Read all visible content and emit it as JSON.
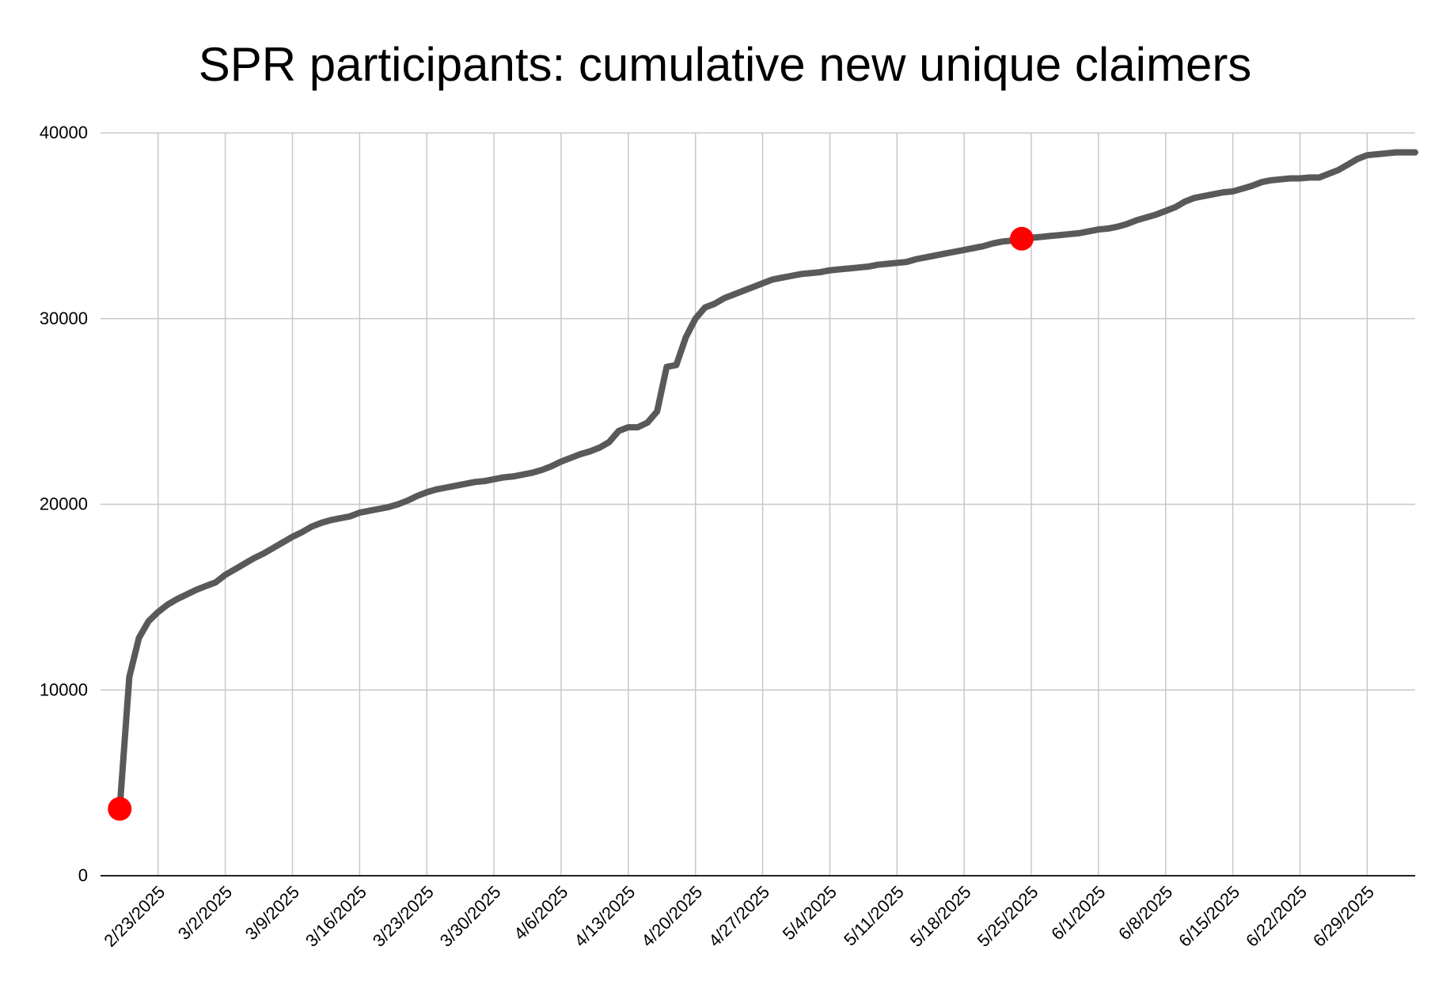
{
  "chart_data": {
    "type": "line",
    "title": "SPR participants: cumulative new unique claimers",
    "xlabel": "",
    "ylabel": "",
    "ylim": [
      0,
      40000
    ],
    "y_ticks": [
      0,
      10000,
      20000,
      30000,
      40000
    ],
    "y_tick_labels": [
      "0",
      "10000",
      "20000",
      "30000",
      "40000"
    ],
    "x_range": [
      "2025-02-17",
      "2025-07-04"
    ],
    "x_tick_labels": [
      "2/23/2025",
      "3/2/2025",
      "3/9/2025",
      "3/16/2025",
      "3/23/2025",
      "3/30/2025",
      "4/6/2025",
      "4/13/2025",
      "4/20/2025",
      "4/27/2025",
      "5/4/2025",
      "5/11/2025",
      "5/18/2025",
      "5/25/2025",
      "6/1/2025",
      "6/8/2025",
      "6/15/2025",
      "6/22/2025",
      "6/29/2025"
    ],
    "x_tick_dates": [
      "2025-02-23",
      "2025-03-02",
      "2025-03-09",
      "2025-03-16",
      "2025-03-23",
      "2025-03-30",
      "2025-04-06",
      "2025-04-13",
      "2025-04-20",
      "2025-04-27",
      "2025-05-04",
      "2025-05-11",
      "2025-05-18",
      "2025-05-25",
      "2025-06-01",
      "2025-06-08",
      "2025-06-15",
      "2025-06-22",
      "2025-06-29"
    ],
    "grid": true,
    "line_color": "#595959",
    "marker_color": "#ff0000",
    "series": [
      {
        "x": [
          "2025-02-19",
          "2025-02-20",
          "2025-02-21",
          "2025-02-22",
          "2025-02-23",
          "2025-02-24",
          "2025-02-25",
          "2025-02-26",
          "2025-02-27",
          "2025-02-28",
          "2025-03-01",
          "2025-03-02",
          "2025-03-03",
          "2025-03-04",
          "2025-03-05",
          "2025-03-06",
          "2025-03-07",
          "2025-03-08",
          "2025-03-09",
          "2025-03-10",
          "2025-03-11",
          "2025-03-12",
          "2025-03-13",
          "2025-03-14",
          "2025-03-15",
          "2025-03-16",
          "2025-03-17",
          "2025-03-18",
          "2025-03-19",
          "2025-03-20",
          "2025-03-21",
          "2025-03-22",
          "2025-03-23",
          "2025-03-24",
          "2025-03-25",
          "2025-03-26",
          "2025-03-27",
          "2025-03-28",
          "2025-03-29",
          "2025-03-30",
          "2025-03-31",
          "2025-04-01",
          "2025-04-02",
          "2025-04-03",
          "2025-04-04",
          "2025-04-05",
          "2025-04-06",
          "2025-04-07",
          "2025-04-08",
          "2025-04-09",
          "2025-04-10",
          "2025-04-11",
          "2025-04-12",
          "2025-04-13",
          "2025-04-14",
          "2025-04-15",
          "2025-04-16",
          "2025-04-17",
          "2025-04-18",
          "2025-04-19",
          "2025-04-20",
          "2025-04-21",
          "2025-04-22",
          "2025-04-23",
          "2025-04-24",
          "2025-04-25",
          "2025-04-26",
          "2025-04-27",
          "2025-04-28",
          "2025-04-29",
          "2025-04-30",
          "2025-05-01",
          "2025-05-02",
          "2025-05-03",
          "2025-05-04",
          "2025-05-05",
          "2025-05-06",
          "2025-05-07",
          "2025-05-08",
          "2025-05-09",
          "2025-05-10",
          "2025-05-11",
          "2025-05-12",
          "2025-05-13",
          "2025-05-14",
          "2025-05-15",
          "2025-05-16",
          "2025-05-17",
          "2025-05-18",
          "2025-05-19",
          "2025-05-20",
          "2025-05-21",
          "2025-05-22",
          "2025-05-23",
          "2025-05-24",
          "2025-05-25",
          "2025-05-26",
          "2025-05-27",
          "2025-05-28",
          "2025-05-29",
          "2025-05-30",
          "2025-05-31",
          "2025-06-01",
          "2025-06-02",
          "2025-06-03",
          "2025-06-04",
          "2025-06-05",
          "2025-06-06",
          "2025-06-07",
          "2025-06-08",
          "2025-06-09",
          "2025-06-10",
          "2025-06-11",
          "2025-06-12",
          "2025-06-13",
          "2025-06-14",
          "2025-06-15",
          "2025-06-16",
          "2025-06-17",
          "2025-06-18",
          "2025-06-19",
          "2025-06-20",
          "2025-06-21",
          "2025-06-22",
          "2025-06-23",
          "2025-06-24",
          "2025-06-25",
          "2025-06-26",
          "2025-06-27",
          "2025-06-28",
          "2025-06-29",
          "2025-06-30",
          "2025-07-01",
          "2025-07-02",
          "2025-07-03",
          "2025-07-04"
        ],
        "values": [
          3600,
          10700,
          12800,
          13700,
          14200,
          14600,
          14900,
          15150,
          15400,
          15600,
          15800,
          16200,
          16500,
          16800,
          17100,
          17350,
          17650,
          17950,
          18250,
          18500,
          18800,
          19000,
          19150,
          19250,
          19350,
          19550,
          19650,
          19750,
          19850,
          20000,
          20200,
          20450,
          20650,
          20800,
          20900,
          21000,
          21100,
          21200,
          21250,
          21350,
          21450,
          21500,
          21600,
          21700,
          21850,
          22050,
          22300,
          22500,
          22700,
          22850,
          23050,
          23350,
          23950,
          24150,
          24150,
          24400,
          25000,
          27400,
          27500,
          29000,
          30000,
          30600,
          30800,
          31100,
          31300,
          31500,
          31700,
          31900,
          32100,
          32200,
          32300,
          32400,
          32450,
          32500,
          32600,
          32650,
          32700,
          32750,
          32800,
          32900,
          32950,
          33000,
          33050,
          33200,
          33300,
          33400,
          33500,
          33600,
          33700,
          33800,
          33900,
          34050,
          34150,
          34200,
          34300,
          34350,
          34400,
          34450,
          34500,
          34550,
          34600,
          34700,
          34800,
          34850,
          34950,
          35100,
          35300,
          35450,
          35600,
          35800,
          36000,
          36300,
          36500,
          36600,
          36700,
          36800,
          36850,
          37000,
          37150,
          37350,
          37450,
          37500,
          37550,
          37550,
          37600,
          37600,
          37800,
          38000,
          38300,
          38600,
          38800,
          38850,
          38900,
          38950,
          38950,
          38950
        ]
      }
    ],
    "highlighted_points": [
      {
        "x": "2025-02-19",
        "value": 3600
      },
      {
        "x": "2025-05-24",
        "value": 34300
      }
    ]
  }
}
